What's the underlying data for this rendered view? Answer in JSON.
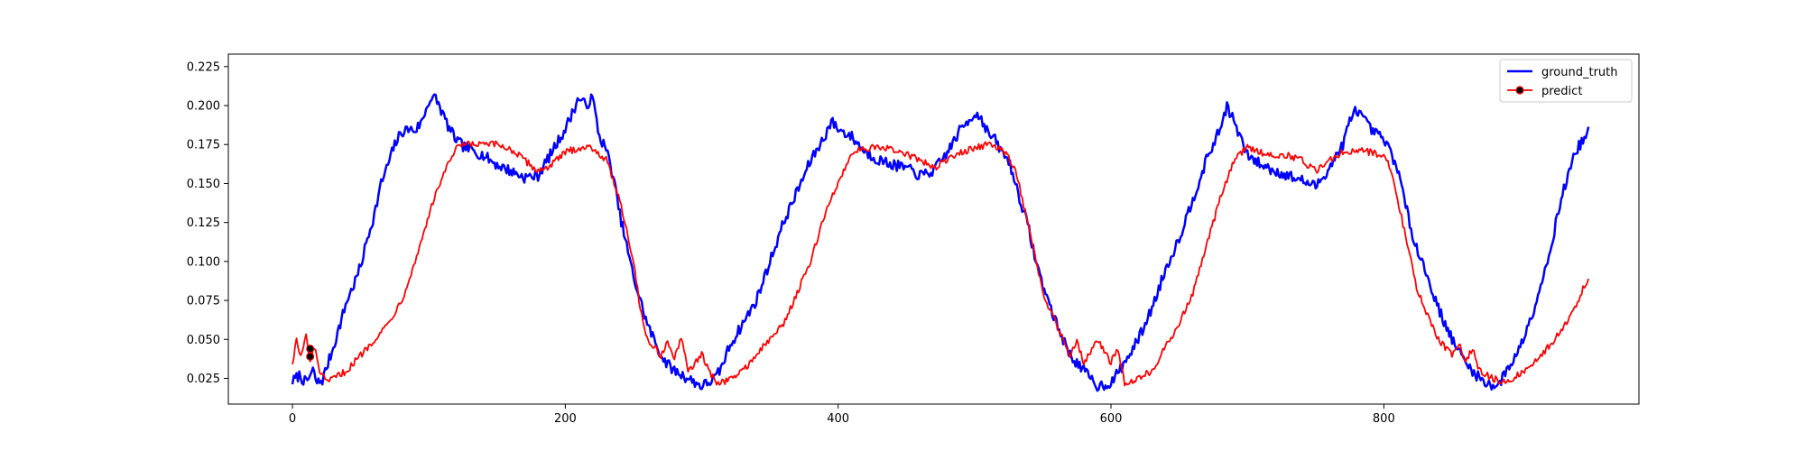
{
  "chart_data": {
    "type": "line",
    "title": "",
    "xlabel": "",
    "ylabel": "",
    "xlim": [
      -47,
      987
    ],
    "ylim": [
      0.0085,
      0.233
    ],
    "xticks": [
      0,
      200,
      400,
      600,
      800
    ],
    "yticks": [
      0.025,
      0.05,
      0.075,
      0.1,
      0.125,
      0.15,
      0.175,
      0.2,
      0.225
    ],
    "ytick_labels": [
      "0.025",
      "0.050",
      "0.075",
      "0.100",
      "0.125",
      "0.150",
      "0.175",
      "0.200",
      "0.225"
    ],
    "grid": false,
    "legend": {
      "position": "top-right"
    },
    "series": [
      {
        "name": "ground_truth",
        "color": "#0000ff",
        "keypoints": [
          [
            0,
            0.023
          ],
          [
            5,
            0.027
          ],
          [
            10,
            0.022
          ],
          [
            15,
            0.03
          ],
          [
            18,
            0.022
          ],
          [
            22,
            0.024
          ],
          [
            30,
            0.045
          ],
          [
            35,
            0.06
          ],
          [
            40,
            0.075
          ],
          [
            45,
            0.085
          ],
          [
            50,
            0.097
          ],
          [
            55,
            0.115
          ],
          [
            60,
            0.13
          ],
          [
            65,
            0.15
          ],
          [
            70,
            0.162
          ],
          [
            75,
            0.175
          ],
          [
            80,
            0.183
          ],
          [
            85,
            0.185
          ],
          [
            90,
            0.184
          ],
          [
            95,
            0.19
          ],
          [
            100,
            0.203
          ],
          [
            105,
            0.205
          ],
          [
            110,
            0.195
          ],
          [
            115,
            0.185
          ],
          [
            120,
            0.178
          ],
          [
            125,
            0.174
          ],
          [
            130,
            0.172
          ],
          [
            140,
            0.168
          ],
          [
            150,
            0.162
          ],
          [
            160,
            0.158
          ],
          [
            170,
            0.154
          ],
          [
            180,
            0.155
          ],
          [
            190,
            0.17
          ],
          [
            200,
            0.185
          ],
          [
            205,
            0.195
          ],
          [
            210,
            0.205
          ],
          [
            215,
            0.2
          ],
          [
            220,
            0.205
          ],
          [
            225,
            0.18
          ],
          [
            230,
            0.172
          ],
          [
            235,
            0.155
          ],
          [
            240,
            0.13
          ],
          [
            245,
            0.11
          ],
          [
            250,
            0.09
          ],
          [
            255,
            0.075
          ],
          [
            260,
            0.06
          ],
          [
            265,
            0.05
          ],
          [
            270,
            0.04
          ],
          [
            275,
            0.034
          ],
          [
            280,
            0.03
          ],
          [
            290,
            0.025
          ],
          [
            300,
            0.02
          ],
          [
            310,
            0.025
          ],
          [
            315,
            0.033
          ],
          [
            320,
            0.045
          ],
          [
            330,
            0.06
          ],
          [
            340,
            0.075
          ],
          [
            350,
            0.1
          ],
          [
            360,
            0.125
          ],
          [
            370,
            0.145
          ],
          [
            380,
            0.165
          ],
          [
            390,
            0.18
          ],
          [
            395,
            0.19
          ],
          [
            400,
            0.185
          ],
          [
            410,
            0.18
          ],
          [
            420,
            0.17
          ],
          [
            430,
            0.165
          ],
          [
            440,
            0.162
          ],
          [
            450,
            0.16
          ],
          [
            460,
            0.155
          ],
          [
            470,
            0.158
          ],
          [
            480,
            0.17
          ],
          [
            490,
            0.185
          ],
          [
            500,
            0.195
          ],
          [
            505,
            0.192
          ],
          [
            510,
            0.182
          ],
          [
            515,
            0.178
          ],
          [
            520,
            0.17
          ],
          [
            525,
            0.165
          ],
          [
            530,
            0.15
          ],
          [
            540,
            0.12
          ],
          [
            545,
            0.1
          ],
          [
            550,
            0.085
          ],
          [
            560,
            0.06
          ],
          [
            570,
            0.04
          ],
          [
            580,
            0.03
          ],
          [
            590,
            0.02
          ],
          [
            600,
            0.022
          ],
          [
            610,
            0.035
          ],
          [
            620,
            0.05
          ],
          [
            630,
            0.07
          ],
          [
            640,
            0.095
          ],
          [
            650,
            0.115
          ],
          [
            660,
            0.14
          ],
          [
            670,
            0.165
          ],
          [
            680,
            0.185
          ],
          [
            685,
            0.2
          ],
          [
            690,
            0.19
          ],
          [
            700,
            0.168
          ],
          [
            710,
            0.162
          ],
          [
            720,
            0.158
          ],
          [
            730,
            0.155
          ],
          [
            740,
            0.152
          ],
          [
            750,
            0.148
          ],
          [
            760,
            0.16
          ],
          [
            770,
            0.175
          ],
          [
            775,
            0.19
          ],
          [
            780,
            0.198
          ],
          [
            790,
            0.185
          ],
          [
            800,
            0.178
          ],
          [
            805,
            0.17
          ],
          [
            810,
            0.16
          ],
          [
            815,
            0.14
          ],
          [
            820,
            0.12
          ],
          [
            830,
            0.095
          ],
          [
            840,
            0.07
          ],
          [
            850,
            0.05
          ],
          [
            860,
            0.035
          ],
          [
            870,
            0.025
          ],
          [
            880,
            0.02
          ],
          [
            885,
            0.022
          ],
          [
            890,
            0.03
          ],
          [
            900,
            0.045
          ],
          [
            910,
            0.07
          ],
          [
            920,
            0.1
          ],
          [
            930,
            0.14
          ],
          [
            940,
            0.17
          ],
          [
            950,
            0.183
          ]
        ]
      },
      {
        "name": "predict",
        "color": "#ff0000",
        "marker": "o",
        "keypoints": [
          [
            0,
            0.035
          ],
          [
            3,
            0.05
          ],
          [
            6,
            0.038
          ],
          [
            10,
            0.052
          ],
          [
            13,
            0.035
          ],
          [
            16,
            0.045
          ],
          [
            20,
            0.03
          ],
          [
            25,
            0.022
          ],
          [
            30,
            0.025
          ],
          [
            40,
            0.03
          ],
          [
            50,
            0.04
          ],
          [
            60,
            0.05
          ],
          [
            70,
            0.06
          ],
          [
            80,
            0.075
          ],
          [
            90,
            0.1
          ],
          [
            100,
            0.13
          ],
          [
            110,
            0.155
          ],
          [
            120,
            0.172
          ],
          [
            125,
            0.175
          ],
          [
            140,
            0.175
          ],
          [
            150,
            0.175
          ],
          [
            160,
            0.172
          ],
          [
            170,
            0.165
          ],
          [
            180,
            0.158
          ],
          [
            190,
            0.162
          ],
          [
            200,
            0.17
          ],
          [
            210,
            0.173
          ],
          [
            220,
            0.173
          ],
          [
            230,
            0.165
          ],
          [
            240,
            0.14
          ],
          [
            245,
            0.12
          ],
          [
            250,
            0.1
          ],
          [
            255,
            0.07
          ],
          [
            260,
            0.05
          ],
          [
            270,
            0.04
          ],
          [
            275,
            0.048
          ],
          [
            280,
            0.038
          ],
          [
            285,
            0.05
          ],
          [
            290,
            0.03
          ],
          [
            300,
            0.04
          ],
          [
            310,
            0.022
          ],
          [
            320,
            0.024
          ],
          [
            330,
            0.03
          ],
          [
            340,
            0.04
          ],
          [
            350,
            0.05
          ],
          [
            360,
            0.06
          ],
          [
            370,
            0.08
          ],
          [
            380,
            0.1
          ],
          [
            390,
            0.13
          ],
          [
            400,
            0.15
          ],
          [
            410,
            0.17
          ],
          [
            420,
            0.173
          ],
          [
            440,
            0.172
          ],
          [
            460,
            0.165
          ],
          [
            470,
            0.16
          ],
          [
            480,
            0.165
          ],
          [
            490,
            0.17
          ],
          [
            500,
            0.173
          ],
          [
            510,
            0.175
          ],
          [
            520,
            0.172
          ],
          [
            530,
            0.16
          ],
          [
            535,
            0.14
          ],
          [
            540,
            0.12
          ],
          [
            545,
            0.1
          ],
          [
            550,
            0.08
          ],
          [
            560,
            0.06
          ],
          [
            570,
            0.04
          ],
          [
            575,
            0.05
          ],
          [
            580,
            0.035
          ],
          [
            590,
            0.05
          ],
          [
            600,
            0.035
          ],
          [
            605,
            0.045
          ],
          [
            610,
            0.022
          ],
          [
            620,
            0.025
          ],
          [
            630,
            0.03
          ],
          [
            640,
            0.045
          ],
          [
            650,
            0.06
          ],
          [
            660,
            0.08
          ],
          [
            670,
            0.11
          ],
          [
            680,
            0.14
          ],
          [
            690,
            0.165
          ],
          [
            700,
            0.173
          ],
          [
            710,
            0.17
          ],
          [
            720,
            0.168
          ],
          [
            730,
            0.168
          ],
          [
            740,
            0.165
          ],
          [
            750,
            0.158
          ],
          [
            760,
            0.165
          ],
          [
            770,
            0.17
          ],
          [
            780,
            0.172
          ],
          [
            790,
            0.17
          ],
          [
            800,
            0.168
          ],
          [
            805,
            0.16
          ],
          [
            810,
            0.14
          ],
          [
            815,
            0.12
          ],
          [
            820,
            0.1
          ],
          [
            825,
            0.08
          ],
          [
            830,
            0.07
          ],
          [
            840,
            0.05
          ],
          [
            850,
            0.04
          ],
          [
            855,
            0.048
          ],
          [
            860,
            0.035
          ],
          [
            865,
            0.045
          ],
          [
            870,
            0.03
          ],
          [
            880,
            0.025
          ],
          [
            890,
            0.022
          ],
          [
            900,
            0.028
          ],
          [
            910,
            0.035
          ],
          [
            920,
            0.045
          ],
          [
            930,
            0.055
          ],
          [
            940,
            0.07
          ],
          [
            950,
            0.09
          ]
        ],
        "markers": [
          [
            13,
            0.044
          ],
          [
            13,
            0.039
          ]
        ]
      }
    ]
  }
}
